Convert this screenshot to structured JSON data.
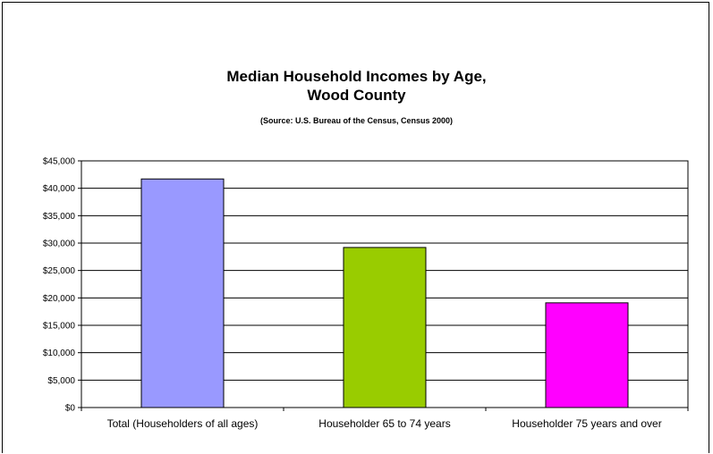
{
  "chart_data": {
    "type": "bar",
    "title": "Median Household Incomes by Age,",
    "title_line2": "Wood County",
    "subtitle": "(Source: U.S. Bureau of the Census, Census 2000)",
    "categories": [
      "Total (Householders of all ages)",
      "Householder 65 to 74 years",
      "Householder 75 years and over"
    ],
    "values": [
      41700,
      29200,
      19100
    ],
    "ylim": [
      0,
      45000
    ],
    "yticks": [
      0,
      5000,
      10000,
      15000,
      20000,
      25000,
      30000,
      35000,
      40000,
      45000
    ],
    "ytick_labels": [
      "$0",
      "$5,000",
      "$10,000",
      "$15,000",
      "$20,000",
      "$25,000",
      "$30,000",
      "$35,000",
      "$40,000",
      "$45,000"
    ],
    "grid": true,
    "legend": "none",
    "colors": [
      "#9999ff",
      "#99cc00",
      "#ff00ff"
    ]
  }
}
